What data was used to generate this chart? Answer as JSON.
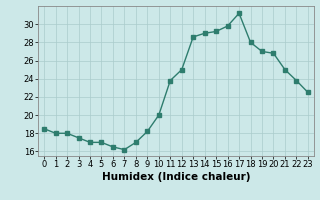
{
  "x": [
    0,
    1,
    2,
    3,
    4,
    5,
    6,
    7,
    8,
    9,
    10,
    11,
    12,
    13,
    14,
    15,
    16,
    17,
    18,
    19,
    20,
    21,
    22,
    23
  ],
  "y": [
    18.5,
    18.0,
    18.0,
    17.5,
    17.0,
    17.0,
    16.5,
    16.2,
    17.0,
    18.2,
    20.0,
    23.8,
    25.0,
    28.6,
    29.0,
    29.2,
    29.8,
    31.2,
    28.0,
    27.0,
    26.8,
    25.0,
    23.8,
    22.5
  ],
  "line_color": "#2e7d6e",
  "marker": "s",
  "marker_size": 2.5,
  "bg_color": "#cce8e8",
  "grid_color": "#aacccc",
  "xlabel": "Humidex (Indice chaleur)",
  "ylim": [
    15.5,
    32
  ],
  "xlim": [
    -0.5,
    23.5
  ],
  "yticks": [
    16,
    18,
    20,
    22,
    24,
    26,
    28,
    30
  ],
  "xticks": [
    0,
    1,
    2,
    3,
    4,
    5,
    6,
    7,
    8,
    9,
    10,
    11,
    12,
    13,
    14,
    15,
    16,
    17,
    18,
    19,
    20,
    21,
    22,
    23
  ],
  "tick_fontsize": 6,
  "xlabel_fontsize": 7.5,
  "line_width": 1.0
}
